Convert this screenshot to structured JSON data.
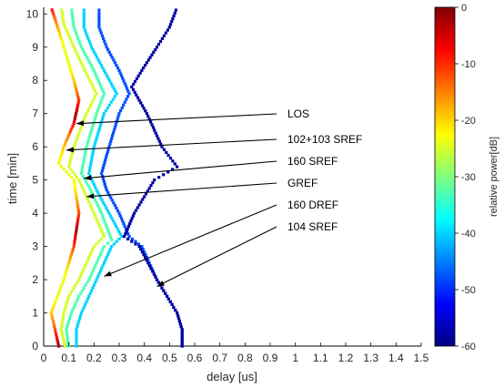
{
  "chart_data": {
    "type": "scatter",
    "title": "",
    "xlabel": "delay [us]",
    "ylabel": "time [min]",
    "xlim": [
      0,
      1.5
    ],
    "ylim": [
      0,
      10.2
    ],
    "xticks": [
      "0",
      "0.1",
      "0.2",
      "0.3",
      "0.4",
      "0.5",
      "0.6",
      "0.7",
      "0.8",
      "0.9",
      "1",
      "1.1",
      "1.2",
      "1.3",
      "1.4",
      "1.5"
    ],
    "yticks": [
      "0",
      "1",
      "2",
      "3",
      "4",
      "5",
      "6",
      "7",
      "8",
      "9",
      "10"
    ],
    "grid": false,
    "colorbar": {
      "label": "relative power[dB]",
      "range": [
        -60,
        0
      ],
      "ticks": [
        "0",
        "-10",
        "-20",
        "-30",
        "-40",
        "-50",
        "-60"
      ],
      "colormap": "jet"
    },
    "series": [
      {
        "name": "LOS",
        "color_db": -2,
        "points": [
          [
            0.06,
            0
          ],
          [
            0.045,
            0.5
          ],
          [
            0.03,
            1
          ],
          [
            0.055,
            1.5
          ],
          [
            0.08,
            2
          ],
          [
            0.12,
            3
          ],
          [
            0.14,
            4
          ],
          [
            0.12,
            5
          ],
          [
            0.06,
            5.5
          ],
          [
            0.08,
            6
          ],
          [
            0.12,
            6.7
          ],
          [
            0.14,
            7.4
          ],
          [
            0.12,
            8
          ],
          [
            0.08,
            9
          ],
          [
            0.06,
            9.5
          ],
          [
            0.03,
            10.2
          ]
        ]
      },
      {
        "name": "102+103 SREF",
        "color_db": -25,
        "points": [
          [
            0.085,
            0
          ],
          [
            0.07,
            0.5
          ],
          [
            0.08,
            1
          ],
          [
            0.1,
            1.5
          ],
          [
            0.14,
            2
          ],
          [
            0.2,
            3
          ],
          [
            0.24,
            3.3
          ],
          [
            0.2,
            4
          ],
          [
            0.14,
            5
          ],
          [
            0.1,
            5.4
          ],
          [
            0.12,
            6
          ],
          [
            0.17,
            7
          ],
          [
            0.21,
            7.6
          ],
          [
            0.17,
            8.2
          ],
          [
            0.12,
            9
          ],
          [
            0.08,
            9.7
          ],
          [
            0.07,
            10.2
          ]
        ]
      },
      {
        "name": "160 SREF",
        "color_db": -33,
        "points": [
          [
            0.1,
            0
          ],
          [
            0.09,
            0.5
          ],
          [
            0.11,
            1
          ],
          [
            0.14,
            1.5
          ],
          [
            0.18,
            2
          ],
          [
            0.24,
            3
          ],
          [
            0.27,
            3.2
          ],
          [
            0.23,
            4
          ],
          [
            0.18,
            4.8
          ],
          [
            0.15,
            5.2
          ],
          [
            0.17,
            6
          ],
          [
            0.21,
            7
          ],
          [
            0.24,
            7.6
          ],
          [
            0.2,
            8.3
          ],
          [
            0.15,
            9
          ],
          [
            0.12,
            9.6
          ],
          [
            0.11,
            10.2
          ]
        ]
      },
      {
        "name": "GREF",
        "color_db": -40,
        "points": [
          [
            0.13,
            0
          ],
          [
            0.13,
            0.5
          ],
          [
            0.15,
            1
          ],
          [
            0.18,
            1.5
          ],
          [
            0.21,
            2
          ],
          [
            0.27,
            3
          ],
          [
            0.31,
            3.3
          ],
          [
            0.26,
            4
          ],
          [
            0.21,
            4.7
          ],
          [
            0.18,
            5.2
          ],
          [
            0.2,
            6
          ],
          [
            0.24,
            7
          ],
          [
            0.29,
            7.6
          ],
          [
            0.24,
            8.3
          ],
          [
            0.19,
            9
          ],
          [
            0.16,
            9.6
          ],
          [
            0.16,
            10.2
          ]
        ]
      },
      {
        "name": "160 DREF",
        "color_db": -48,
        "points": [
          [
            0.55,
            0
          ],
          [
            0.55,
            0.5
          ],
          [
            0.53,
            1
          ],
          [
            0.49,
            1.5
          ],
          [
            0.45,
            2
          ],
          [
            0.39,
            3
          ],
          [
            0.34,
            3.3
          ],
          [
            0.3,
            4
          ],
          [
            0.25,
            4.7
          ],
          [
            0.23,
            5.2
          ],
          [
            0.26,
            6
          ],
          [
            0.3,
            7
          ],
          [
            0.34,
            7.6
          ],
          [
            0.3,
            8.3
          ],
          [
            0.25,
            9
          ],
          [
            0.22,
            9.6
          ],
          [
            0.22,
            10.2
          ]
        ]
      },
      {
        "name": "104 SREF",
        "color_db": -58,
        "points": [
          [
            0.55,
            0
          ],
          [
            0.55,
            0.5
          ],
          [
            0.53,
            1
          ],
          [
            0.49,
            1.5
          ],
          [
            0.45,
            2
          ],
          [
            0.38,
            3
          ],
          [
            0.32,
            3.3
          ],
          [
            0.36,
            4
          ],
          [
            0.44,
            5
          ],
          [
            0.53,
            5.4
          ],
          [
            0.47,
            6
          ],
          [
            0.41,
            7
          ],
          [
            0.35,
            7.8
          ],
          [
            0.39,
            8.3
          ],
          [
            0.45,
            9
          ],
          [
            0.5,
            9.6
          ],
          [
            0.53,
            10.2
          ]
        ]
      }
    ],
    "annotations": [
      {
        "text": "LOS",
        "points_to": [
          0.13,
          6.7
        ]
      },
      {
        "text": "102+103 SREF",
        "points_to": [
          0.09,
          5.9
        ]
      },
      {
        "text": "160 SREF",
        "points_to": [
          0.16,
          5.05
        ]
      },
      {
        "text": "GREF",
        "points_to": [
          0.17,
          4.5
        ]
      },
      {
        "text": "160 DREF",
        "points_to": [
          0.24,
          2.1
        ]
      },
      {
        "text": "104 SREF",
        "points_to": [
          0.45,
          1.8
        ]
      }
    ]
  }
}
